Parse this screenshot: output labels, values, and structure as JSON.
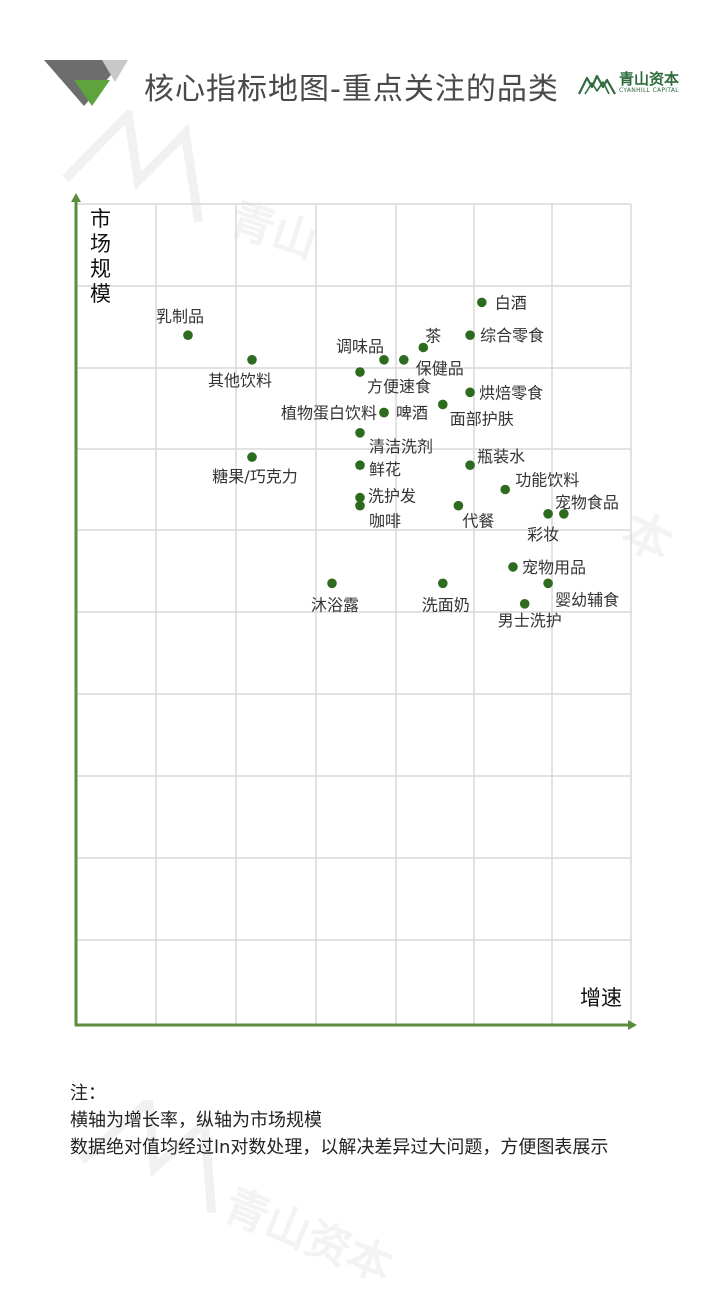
{
  "header": {
    "title": "核心指标地图-重点关注的品类",
    "brand_cn": "青山资本",
    "brand_en": "CYANHILL CAPITAL"
  },
  "chart_data": {
    "type": "scatter",
    "xlabel": "增速",
    "ylabel": "市场规模",
    "grid": true,
    "points": [
      {
        "label": "白酒",
        "x": 5.1,
        "y": 8.8
      },
      {
        "label": "乳制品",
        "x": 1.4,
        "y": 8.4
      },
      {
        "label": "综合零食",
        "x": 4.95,
        "y": 8.4
      },
      {
        "label": "茶",
        "x": 4.35,
        "y": 8.25
      },
      {
        "label": "调味品",
        "x": 3.85,
        "y": 8.1
      },
      {
        "label": "保健品",
        "x": 4.1,
        "y": 8.1
      },
      {
        "label": "其他饮料",
        "x": 2.2,
        "y": 8.1
      },
      {
        "label": "方便速食",
        "x": 3.55,
        "y": 7.95
      },
      {
        "label": "烘焙零食",
        "x": 4.95,
        "y": 7.7
      },
      {
        "label": "面部护肤",
        "x": 4.6,
        "y": 7.55
      },
      {
        "label": "植物蛋白饮料",
        "x": 3.85,
        "y": 7.45
      },
      {
        "label": "啤酒",
        "x": 3.85,
        "y": 7.45
      },
      {
        "label": "清洁洗剂",
        "x": 3.55,
        "y": 7.2
      },
      {
        "label": "糖果/巧克力",
        "x": 2.2,
        "y": 6.9
      },
      {
        "label": "瓶装水",
        "x": 4.95,
        "y": 6.8
      },
      {
        "label": "鲜花",
        "x": 3.55,
        "y": 6.8
      },
      {
        "label": "功能饮料",
        "x": 5.4,
        "y": 6.5
      },
      {
        "label": "洗护发",
        "x": 3.55,
        "y": 6.4
      },
      {
        "label": "咖啡",
        "x": 3.55,
        "y": 6.3
      },
      {
        "label": "代餐",
        "x": 4.8,
        "y": 6.3
      },
      {
        "label": "彩妆",
        "x": 5.95,
        "y": 6.2
      },
      {
        "label": "宠物食品",
        "x": 6.15,
        "y": 6.2
      },
      {
        "label": "宠物用品",
        "x": 5.5,
        "y": 5.55
      },
      {
        "label": "婴幼辅食",
        "x": 5.95,
        "y": 5.35
      },
      {
        "label": "沐浴露",
        "x": 3.2,
        "y": 5.35
      },
      {
        "label": "洗面奶",
        "x": 4.6,
        "y": 5.35
      },
      {
        "label": "男士洗护",
        "x": 5.65,
        "y": 5.1
      }
    ],
    "xlim": [
      0,
      7
    ],
    "ylim": [
      0,
      10
    ],
    "colors": {
      "axis": "#5b8c3e",
      "grid": "#d9d9d9",
      "point": "#2d6b1e"
    }
  },
  "notes": {
    "heading": "注：",
    "line1": "横轴为增长率，纵轴为市场规模",
    "line2": "数据绝对值均经过ln对数处理，以解决差异过大问题，方便图表展示"
  }
}
